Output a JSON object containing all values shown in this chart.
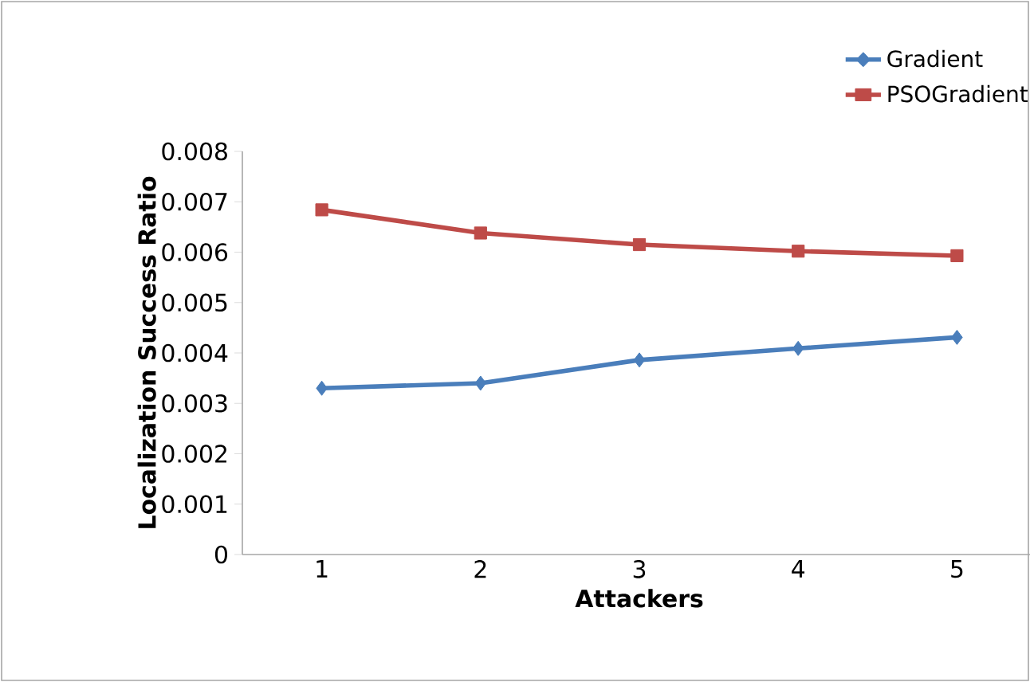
{
  "chart_data": {
    "type": "line",
    "xlabel": "Attackers",
    "ylabel": "Localization Success Ratio",
    "categories": [
      "1",
      "2",
      "3",
      "4",
      "5"
    ],
    "series": [
      {
        "name": "Gradient",
        "color": "#4a7ebb",
        "marker": "diamond",
        "values": [
          0.0033,
          0.0034,
          0.00386,
          0.00409,
          0.00431
        ]
      },
      {
        "name": "PSOGradient",
        "color": "#be4b48",
        "marker": "square",
        "values": [
          0.00684,
          0.00638,
          0.00615,
          0.00602,
          0.00593
        ]
      }
    ],
    "ylim": [
      0,
      0.008
    ],
    "yticks": [
      0,
      0.001,
      0.002,
      0.003,
      0.004,
      0.005,
      0.006,
      0.007,
      0.008
    ],
    "grid": false,
    "legend": "top right"
  }
}
